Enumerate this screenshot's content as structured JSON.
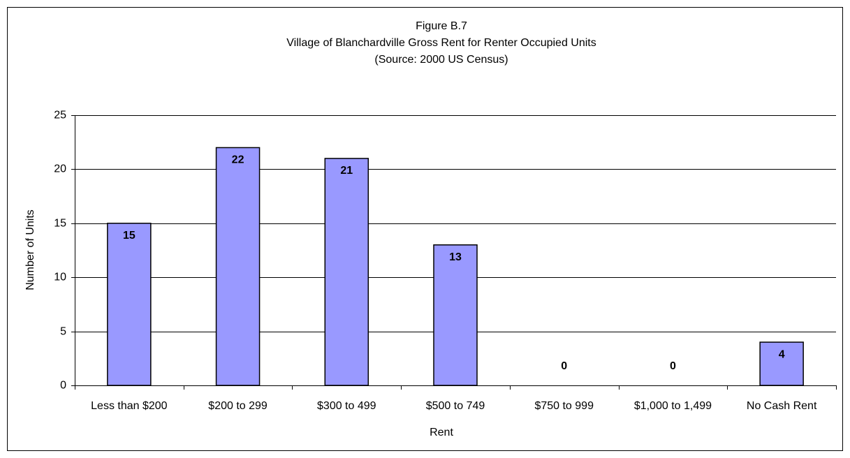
{
  "chart_data": {
    "type": "bar",
    "title": "Figure B.7",
    "subtitle": "Village of Blanchardville Gross Rent for Renter Occupied Units",
    "caption": "(Source:  2000 US Census)",
    "x_label": "Rent",
    "y_label": "Number of Units",
    "categories": [
      "Less than $200",
      "$200 to 299",
      "$300 to 499",
      "$500 to 749",
      "$750 to 999",
      "$1,000 to 1,499",
      "No Cash Rent"
    ],
    "values": [
      15,
      22,
      21,
      13,
      0,
      0,
      4
    ],
    "color": "#9999ff",
    "ylim": [
      0,
      25
    ],
    "yticks": [
      0,
      5,
      10,
      15,
      20,
      25
    ],
    "grid": true
  }
}
